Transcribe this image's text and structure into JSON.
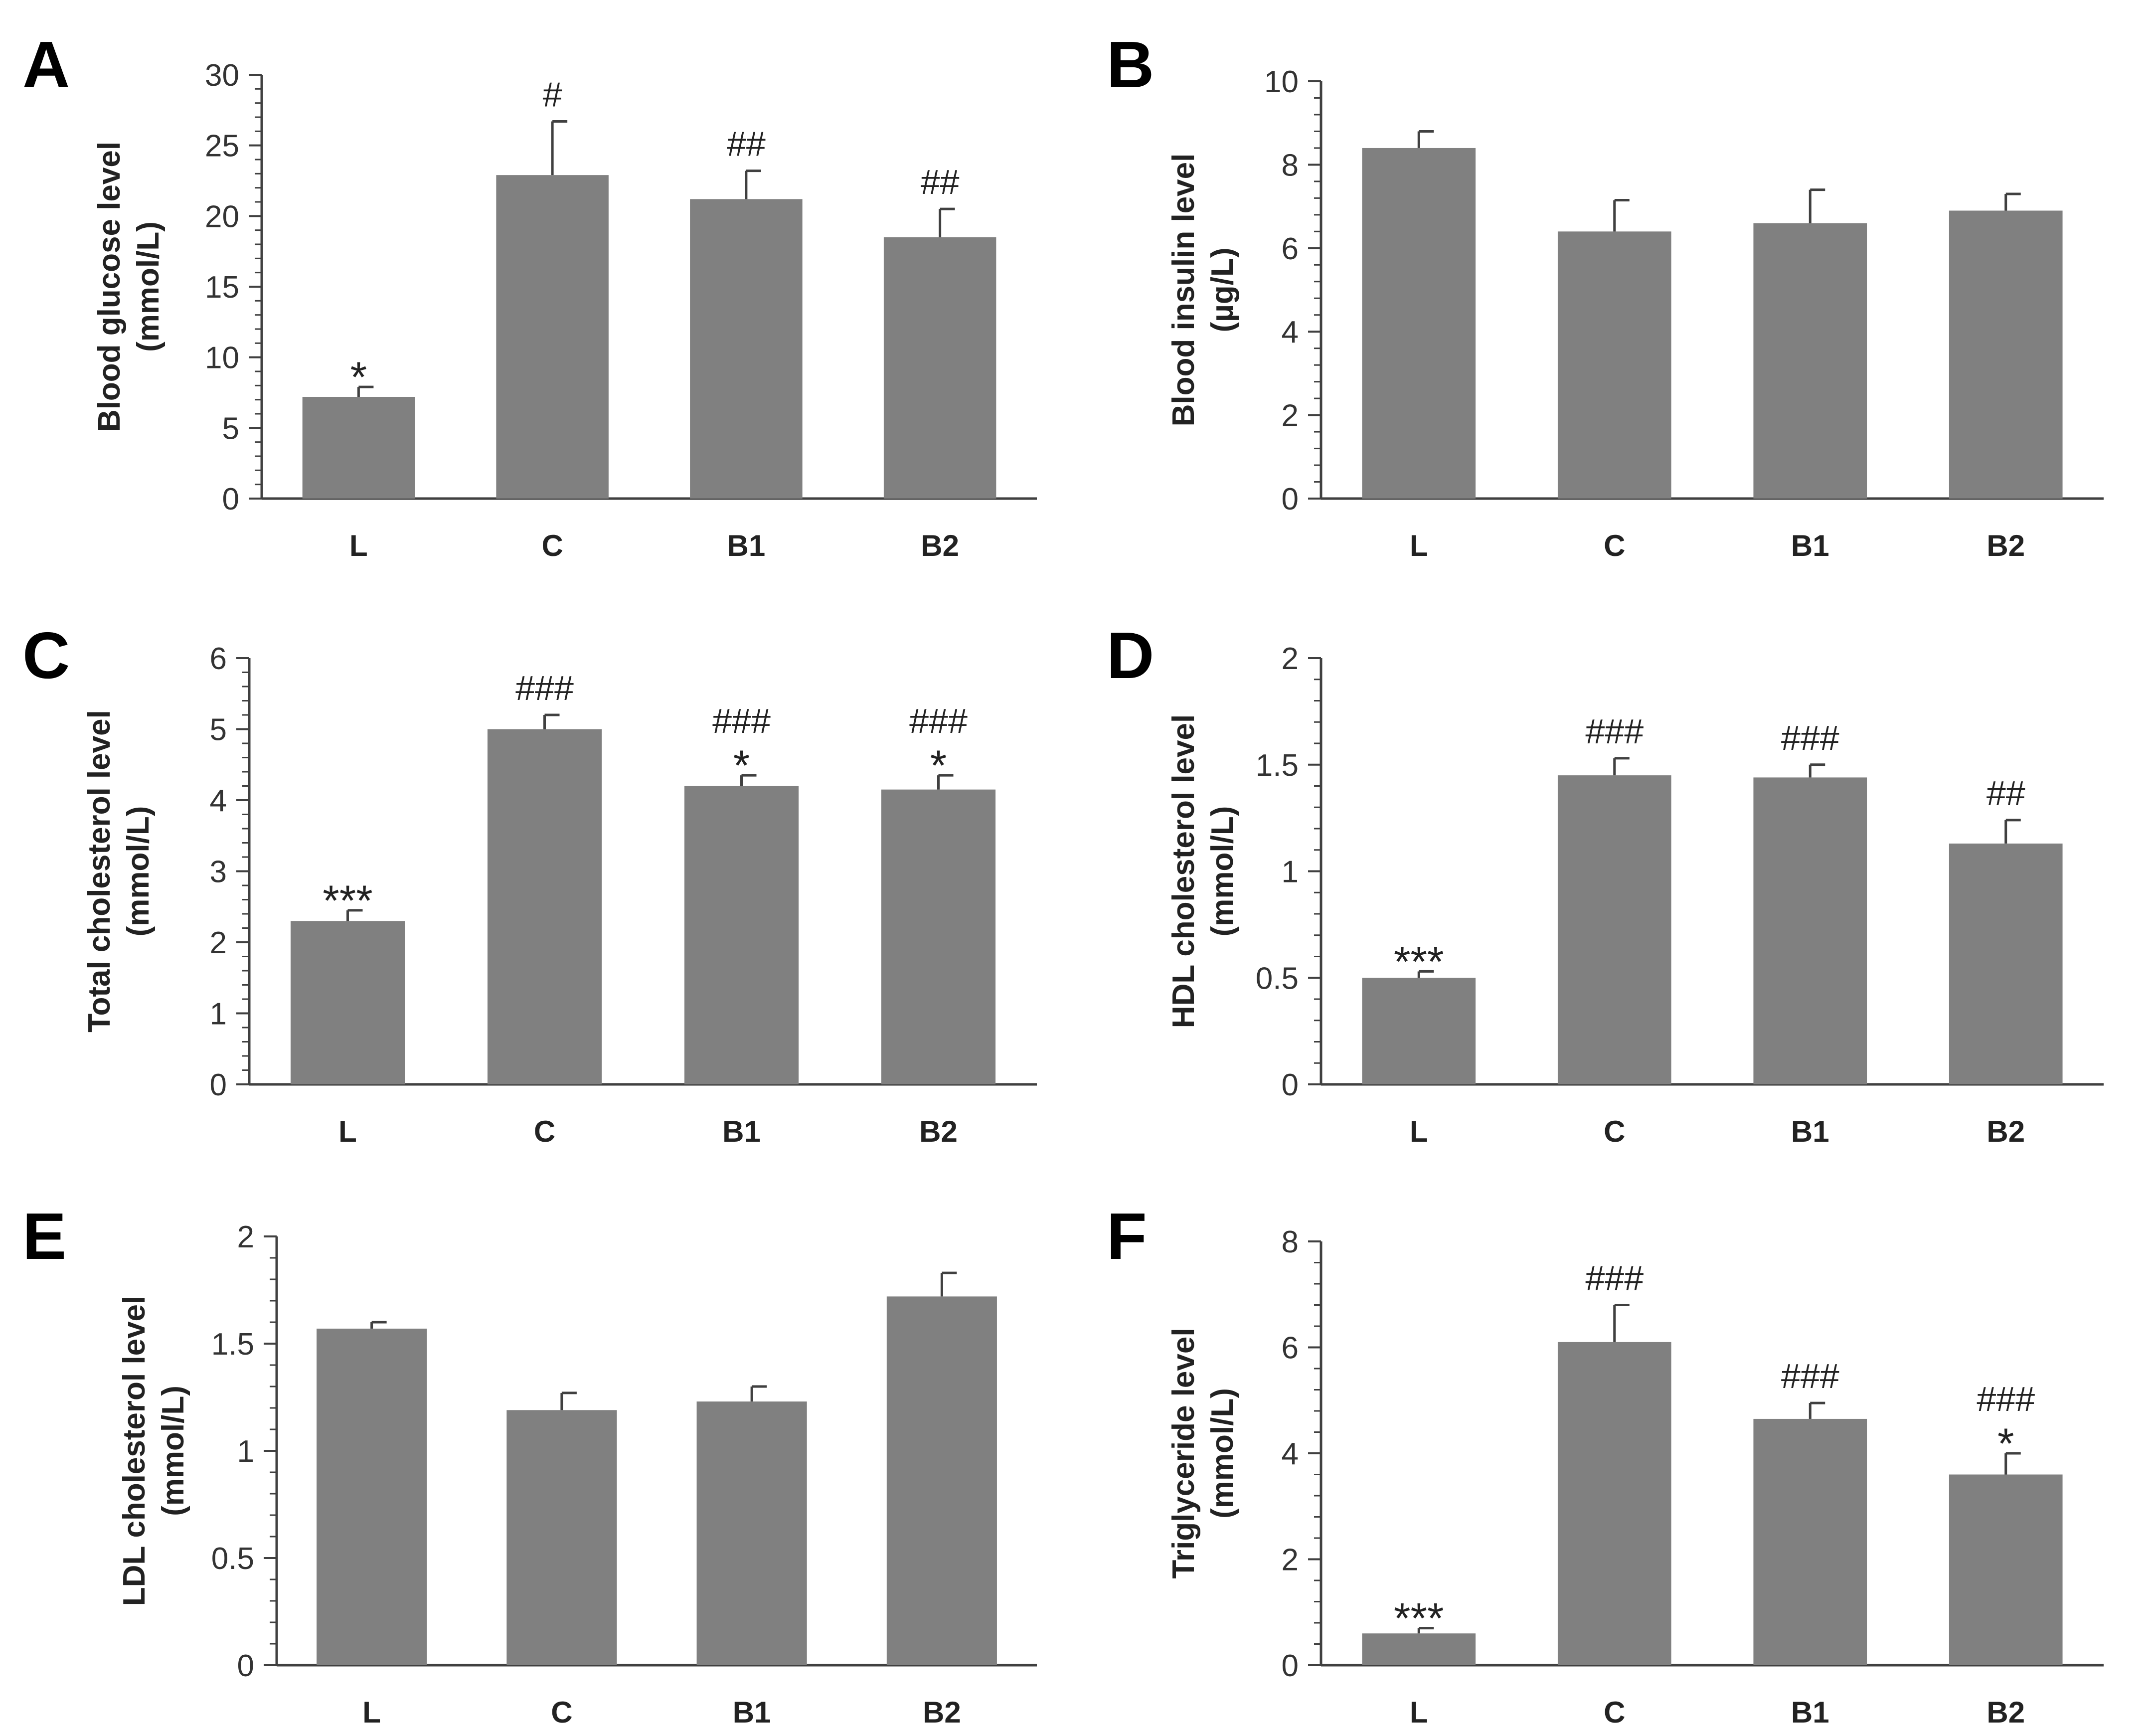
{
  "colors": {
    "bar": "#808080",
    "axis": "#404040"
  },
  "chart_data": [
    {
      "panel": "A",
      "type": "bar",
      "categories": [
        "L",
        "C",
        "B1",
        "B2"
      ],
      "values": [
        7.2,
        22.9,
        21.2,
        18.5
      ],
      "errors": [
        0.7,
        3.8,
        2.0,
        2.0
      ],
      "annotations": [
        [
          "*"
        ],
        [
          "#"
        ],
        [
          "##"
        ],
        [
          "##"
        ]
      ],
      "ylabel": [
        "Blood glucose level",
        "(mmol/L)"
      ],
      "ylim": [
        0,
        30
      ],
      "yticks": [
        0,
        5,
        10,
        15,
        20,
        25,
        30
      ],
      "grid": false,
      "legend": null
    },
    {
      "panel": "B",
      "type": "bar",
      "categories": [
        "L",
        "C",
        "B1",
        "B2"
      ],
      "values": [
        8.4,
        6.4,
        6.6,
        6.9
      ],
      "errors": [
        0.4,
        0.75,
        0.8,
        0.4
      ],
      "annotations": [
        [],
        [],
        [],
        []
      ],
      "ylabel": [
        "Blood insulin level",
        "(µg/L)"
      ],
      "ylim": [
        0,
        10
      ],
      "yticks": [
        0,
        2,
        4,
        6,
        8,
        10
      ],
      "grid": false,
      "legend": null
    },
    {
      "panel": "C",
      "type": "bar",
      "categories": [
        "L",
        "C",
        "B1",
        "B2"
      ],
      "values": [
        2.3,
        5.0,
        4.2,
        4.15
      ],
      "errors": [
        0.15,
        0.2,
        0.15,
        0.2
      ],
      "annotations": [
        [
          "***"
        ],
        [
          "###"
        ],
        [
          "###",
          "*"
        ],
        [
          "###",
          "*"
        ]
      ],
      "ylabel": [
        "Total cholesterol level",
        "(mmol/L)"
      ],
      "ylim": [
        0,
        6
      ],
      "yticks": [
        0,
        1,
        2,
        3,
        4,
        5,
        6
      ],
      "grid": false,
      "legend": null
    },
    {
      "panel": "D",
      "type": "bar",
      "categories": [
        "L",
        "C",
        "B1",
        "B2"
      ],
      "values": [
        0.5,
        1.45,
        1.44,
        1.13
      ],
      "errors": [
        0.03,
        0.08,
        0.06,
        0.11
      ],
      "annotations": [
        [
          "***"
        ],
        [
          "###"
        ],
        [
          "###"
        ],
        [
          "##"
        ]
      ],
      "ylabel": [
        "HDL cholesterol level",
        "(mmol/L)"
      ],
      "ylim": [
        0,
        2
      ],
      "yticks": [
        0,
        0.5,
        1,
        1.5,
        2
      ],
      "grid": false,
      "legend": null
    },
    {
      "panel": "E",
      "type": "bar",
      "categories": [
        "L",
        "C",
        "B1",
        "B2"
      ],
      "values": [
        1.57,
        1.19,
        1.23,
        1.72
      ],
      "errors": [
        0.03,
        0.08,
        0.07,
        0.11
      ],
      "annotations": [
        [],
        [],
        [],
        []
      ],
      "ylabel": [
        "LDL cholesterol level",
        "(mmol/L)"
      ],
      "ylim": [
        0,
        2
      ],
      "yticks": [
        0,
        0.5,
        1,
        1.5,
        2
      ],
      "grid": false,
      "legend": null
    },
    {
      "panel": "F",
      "type": "bar",
      "categories": [
        "L",
        "C",
        "B1",
        "B2"
      ],
      "values": [
        0.6,
        6.1,
        4.65,
        3.6
      ],
      "errors": [
        0.1,
        0.7,
        0.3,
        0.4
      ],
      "annotations": [
        [
          "***"
        ],
        [
          "###"
        ],
        [
          "###"
        ],
        [
          "###",
          "*"
        ]
      ],
      "ylabel": [
        "Triglyceride level",
        "(mmol/L)"
      ],
      "ylim": [
        0,
        8
      ],
      "yticks": [
        0,
        2,
        4,
        6,
        8
      ],
      "grid": false,
      "legend": null
    }
  ]
}
